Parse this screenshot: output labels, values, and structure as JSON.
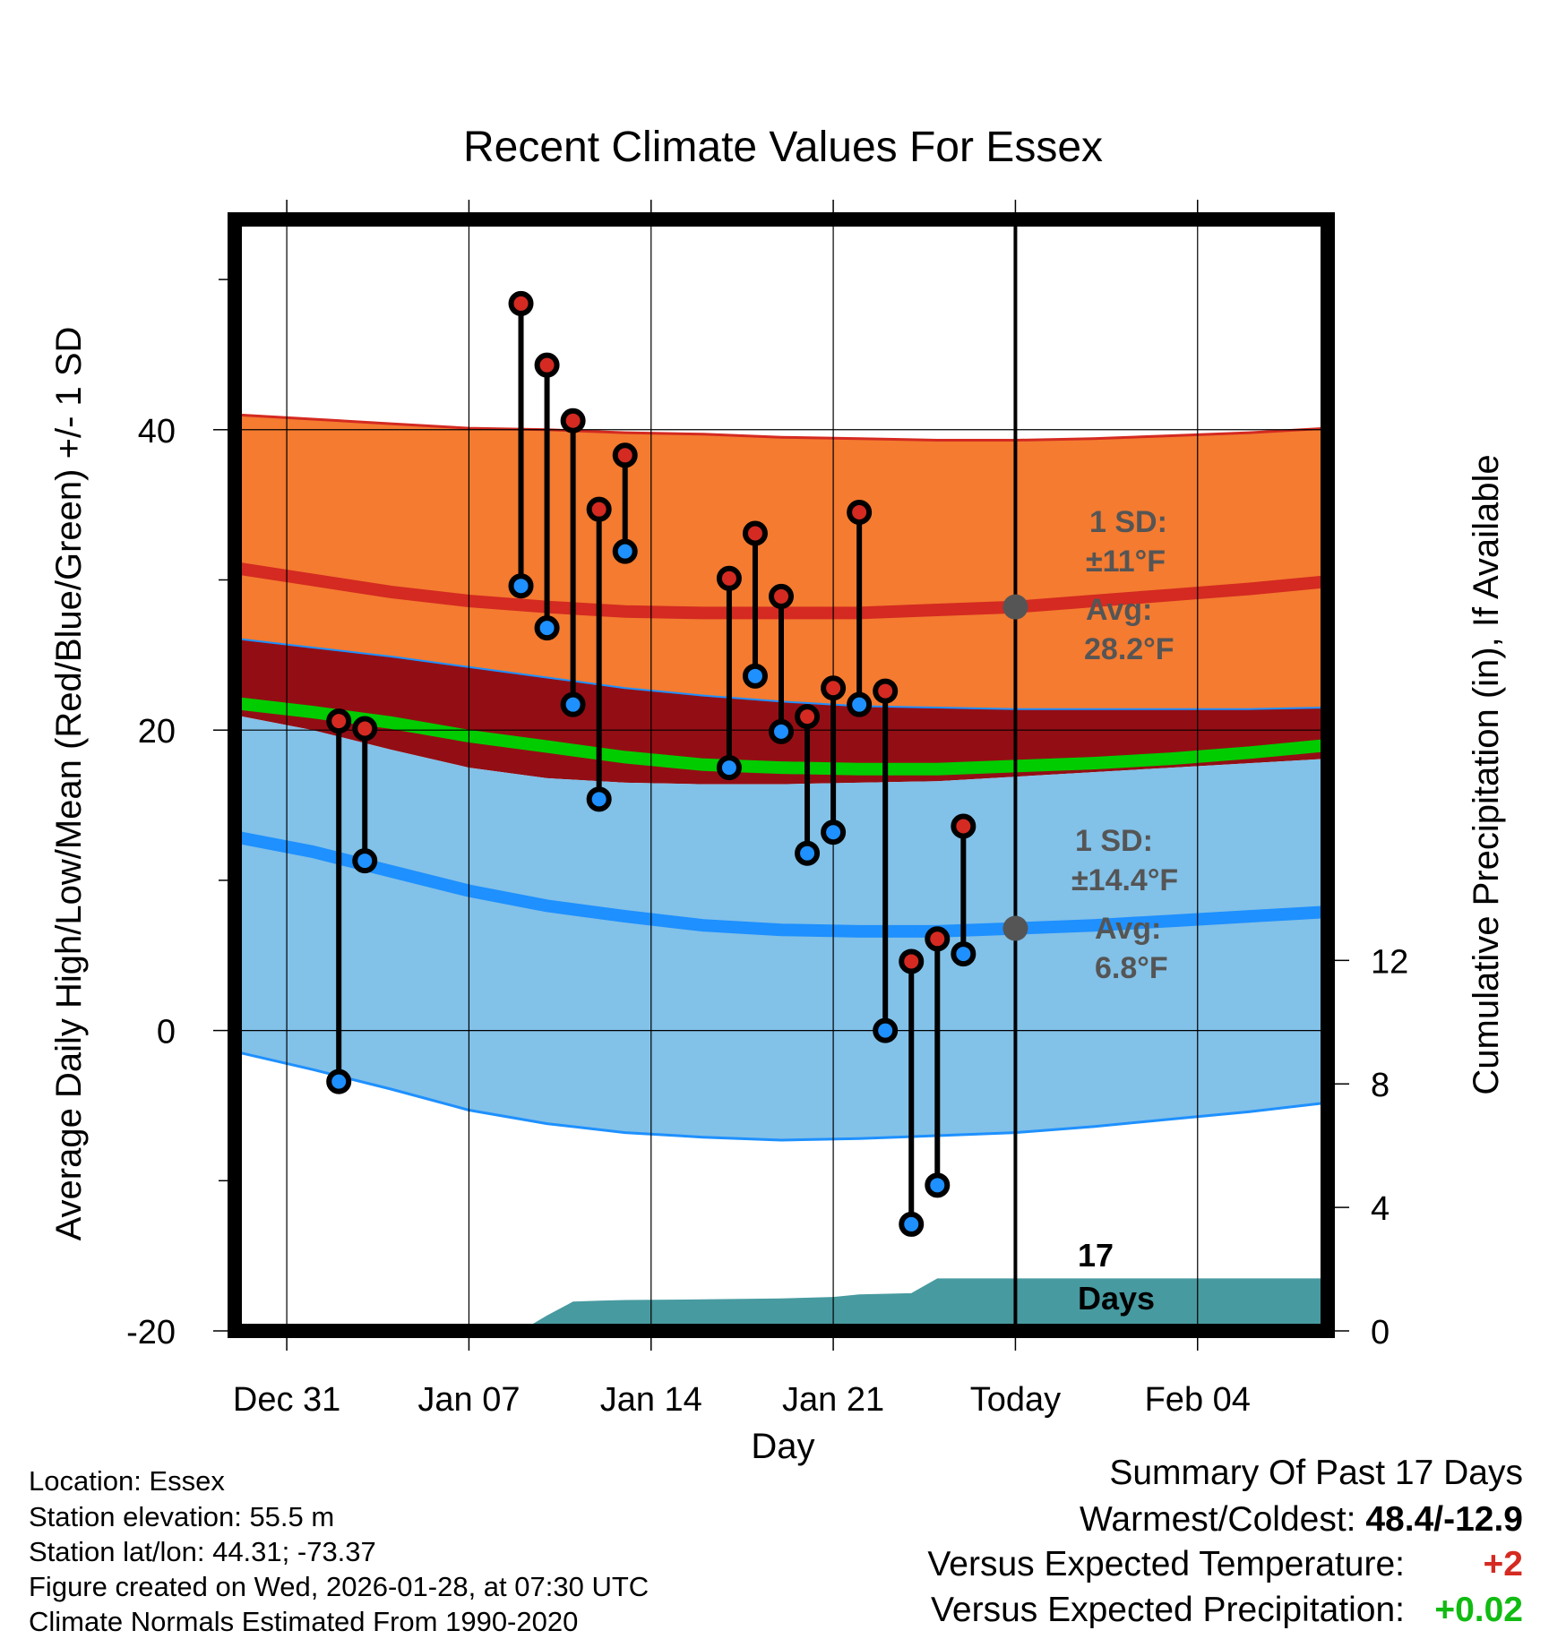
{
  "chart_data": {
    "type": "line",
    "title": "Recent Climate Values For Essex",
    "xlabel": "Day",
    "ylabel": "Average Daily High/Low/Mean (Red/Blue/Green) +/- 1 SD",
    "y2label": "Cumulative Precipitation (in), If Available",
    "ylim": [
      -20,
      54
    ],
    "y2lim": [
      0,
      36
    ],
    "x_day_range": [
      -30,
      12
    ],
    "x_ticks": [
      {
        "day": -28,
        "label": "Dec 31"
      },
      {
        "day": -21,
        "label": "Jan 07"
      },
      {
        "day": -14,
        "label": "Jan 14"
      },
      {
        "day": -7,
        "label": "Jan 21"
      },
      {
        "day": 0,
        "label": "Today"
      },
      {
        "day": 7,
        "label": "Feb 04"
      }
    ],
    "y_ticks": [
      -20,
      0,
      20,
      40
    ],
    "y_minor_ticks": [
      -10,
      10,
      30,
      50
    ],
    "y2_ticks": [
      0,
      4,
      8,
      12
    ],
    "normals": {
      "days": [
        -30,
        -27,
        -24,
        -21,
        -18,
        -15,
        -12,
        -9,
        -6,
        -3,
        0,
        3,
        6,
        9,
        12
      ],
      "high_mean": [
        30.8,
        30.0,
        29.2,
        28.6,
        28.2,
        27.9,
        27.8,
        27.8,
        27.8,
        28.0,
        28.2,
        28.6,
        29.0,
        29.4,
        29.9
      ],
      "high_upper": [
        41.0,
        40.7,
        40.4,
        40.1,
        40.0,
        39.8,
        39.7,
        39.5,
        39.4,
        39.3,
        39.3,
        39.4,
        39.6,
        39.8,
        40.1
      ],
      "high_lower": [
        26.1,
        25.5,
        24.9,
        24.2,
        23.5,
        22.8,
        22.3,
        21.9,
        21.6,
        21.5,
        21.4,
        21.4,
        21.4,
        21.4,
        21.5
      ],
      "mean_line": [
        21.8,
        21.2,
        20.5,
        19.6,
        18.9,
        18.2,
        17.7,
        17.5,
        17.4,
        17.4,
        17.6,
        17.8,
        18.1,
        18.5,
        19.0
      ],
      "mean_upper": [
        21.0,
        20.0,
        18.7,
        17.5,
        16.8,
        16.5,
        16.4,
        16.4,
        16.5,
        16.6,
        16.9,
        17.2,
        17.5,
        17.8,
        18.1
      ],
      "low_mean": [
        12.9,
        11.9,
        10.6,
        9.3,
        8.3,
        7.6,
        7.0,
        6.7,
        6.6,
        6.6,
        6.8,
        7.0,
        7.3,
        7.6,
        7.9
      ],
      "low_lower": [
        -1.4,
        -2.6,
        -3.9,
        -5.3,
        -6.2,
        -6.8,
        -7.1,
        -7.3,
        -7.2,
        -7.0,
        -6.8,
        -6.4,
        -5.9,
        -5.4,
        -4.8
      ]
    },
    "daily": [
      {
        "day": -26,
        "high": 20.6,
        "low": -3.4
      },
      {
        "day": -25,
        "high": 20.1,
        "low": 11.3
      },
      {
        "day": -19,
        "high": 48.4,
        "low": 29.6
      },
      {
        "day": -18,
        "high": 44.3,
        "low": 26.8
      },
      {
        "day": -17,
        "high": 40.6,
        "low": 21.7
      },
      {
        "day": -16,
        "high": 34.7,
        "low": 15.4
      },
      {
        "day": -15,
        "high": 38.3,
        "low": 31.9
      },
      {
        "day": -11,
        "high": 30.1,
        "low": 17.5
      },
      {
        "day": -10,
        "high": 33.1,
        "low": 23.6
      },
      {
        "day": -9,
        "high": 28.9,
        "low": 19.9
      },
      {
        "day": -8,
        "high": 20.9,
        "low": 11.8
      },
      {
        "day": -7,
        "high": 22.8,
        "low": 13.2
      },
      {
        "day": -6,
        "high": 34.5,
        "low": 21.7
      },
      {
        "day": -5,
        "high": 22.6,
        "low": 0.0
      },
      {
        "day": -4,
        "high": 4.6,
        "low": -12.9
      },
      {
        "day": -3,
        "high": 6.1,
        "low": -10.3
      },
      {
        "day": -2,
        "high": 13.6,
        "low": 5.1
      }
    ],
    "precip_cumulative": {
      "days": [
        -30,
        -19,
        -18,
        -17,
        -16,
        -15,
        -12,
        -9,
        -7,
        -6,
        -4,
        -3,
        12
      ],
      "values": [
        0,
        0,
        0.5,
        0.95,
        0.98,
        1.0,
        1.02,
        1.05,
        1.1,
        1.18,
        1.22,
        1.7,
        1.7
      ]
    },
    "annotations": {
      "high_sd_title": "1 SD:",
      "high_sd_value": "±11°F",
      "high_avg_title": "Avg:",
      "high_avg_value": "28.2°F",
      "high_avg": 28.2,
      "low_sd_title": "1 SD:",
      "low_sd_value": "±14.4°F",
      "low_avg_title": "Avg:",
      "low_avg_value": "6.8°F",
      "low_avg": 6.8,
      "days_count": "17",
      "days_word": "Days"
    }
  },
  "colors": {
    "high_band": "#f47b30",
    "high_line": "#d42a21",
    "overlap_band": "#930e14",
    "mean_line": "#00cc00",
    "low_band": "#82c1e8",
    "low_line": "#1e90ff",
    "precip": "#479aa0",
    "annotation": "#555555",
    "positive_temp": "#d42a21",
    "positive_precip": "#11bb11"
  },
  "footer": {
    "location": "Location: Essex",
    "elevation": "Station elevation: 55.5 m",
    "latlon": "Station lat/lon: 44.31; -73.37",
    "created": "Figure created on Wed, 2026-01-28, at 07:30 UTC",
    "normals": "Climate Normals Estimated From 1990-2020"
  },
  "summary": {
    "title": "Summary Of Past 17 Days",
    "warm_cold_label": "Warmest/Coldest:",
    "warm_cold_value": "48.4/-12.9",
    "temp_label": "Versus Expected Temperature:",
    "temp_value": "+2",
    "precip_label": "Versus Expected Precipitation:",
    "precip_value": "+0.02"
  }
}
